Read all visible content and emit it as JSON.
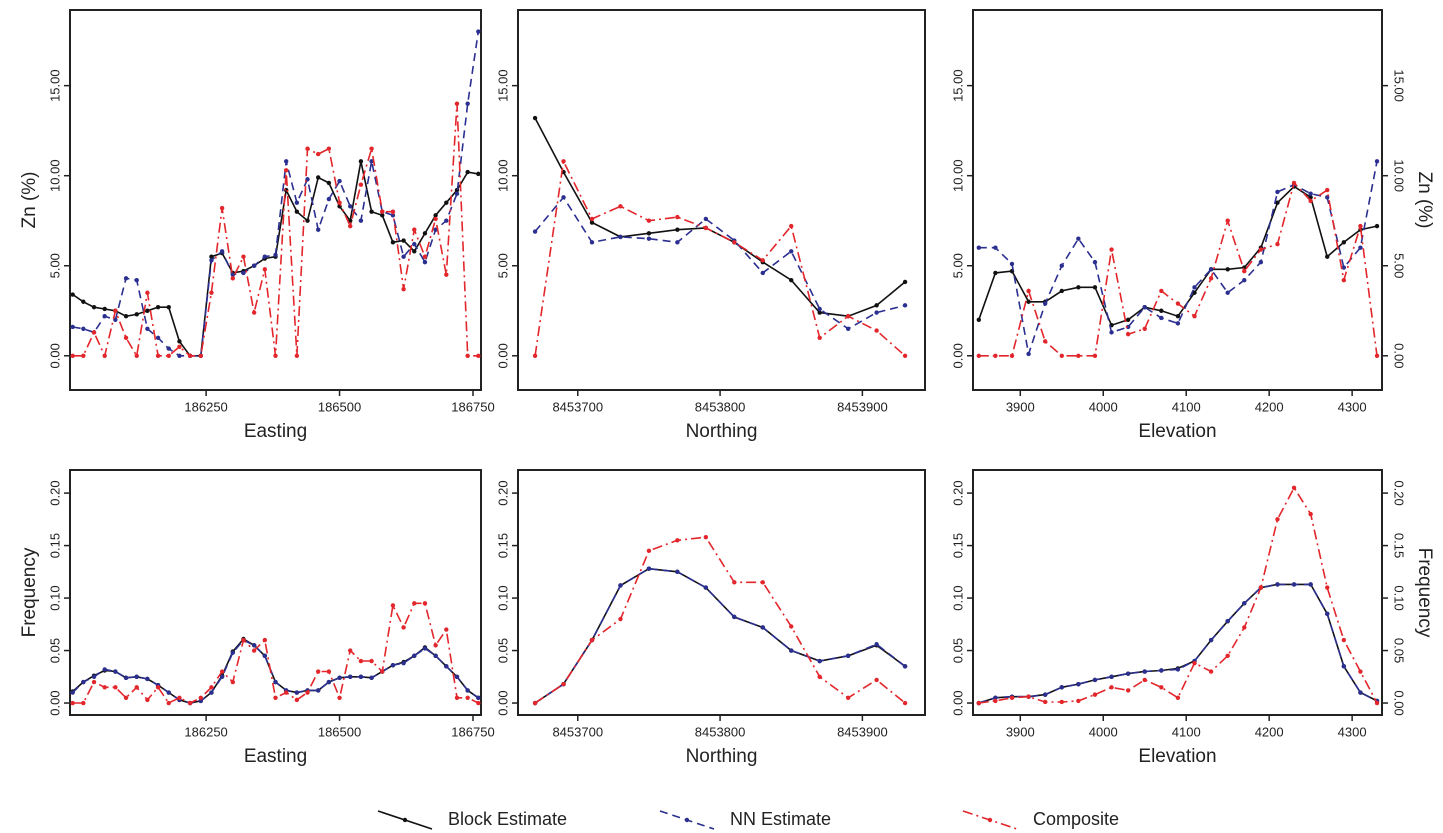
{
  "chart_data": [
    {
      "type": "line",
      "xlabel": "Easting",
      "ylabel": "Zn (%)",
      "ylabel_side": "left",
      "right_axis": false,
      "x": [
        186000,
        186020,
        186040,
        186060,
        186080,
        186100,
        186120,
        186140,
        186160,
        186180,
        186200,
        186220,
        186240,
        186260,
        186280,
        186300,
        186320,
        186340,
        186360,
        186380,
        186400,
        186420,
        186440,
        186460,
        186480,
        186500,
        186520,
        186540,
        186560,
        186580,
        186600,
        186620,
        186640,
        186660,
        186680,
        186700,
        186720,
        186740,
        186760
      ],
      "xlim": [
        185995,
        186765
      ],
      "xticks": [
        186250,
        186500,
        186750
      ],
      "ylim": [
        -1.9,
        19.2
      ],
      "yticks": [
        {
          "value": 0,
          "label": "0.00"
        },
        {
          "value": 5,
          "label": "5.00"
        },
        {
          "value": 10,
          "label": "10.00"
        },
        {
          "value": 15,
          "label": "15.00"
        }
      ],
      "series": [
        {
          "name": "Block Estimate",
          "color": "#111111",
          "style": "solid",
          "values": [
            3.4,
            3.0,
            2.7,
            2.6,
            2.5,
            2.2,
            2.3,
            2.5,
            2.7,
            2.7,
            0.8,
            0,
            0,
            5.5,
            5.7,
            4.6,
            4.7,
            5.0,
            5.4,
            5.5,
            9.2,
            8.0,
            7.5,
            9.9,
            9.6,
            8.3,
            7.5,
            10.8,
            8.0,
            7.8,
            6.3,
            6.4,
            5.8,
            6.8,
            7.8,
            8.5,
            9.2,
            10.2,
            10.1
          ]
        },
        {
          "name": "NN Estimate",
          "color": "#2b2f8f",
          "style": "dashed",
          "values": [
            1.6,
            1.5,
            1.3,
            2.2,
            2.0,
            4.3,
            4.2,
            1.5,
            1.0,
            0.4,
            0,
            0,
            0,
            5.3,
            5.8,
            4.5,
            4.6,
            5.0,
            5.5,
            5.6,
            10.8,
            8.5,
            9.8,
            7.0,
            8.7,
            9.7,
            8.3,
            7.5,
            10.8,
            8.0,
            7.8,
            5.5,
            6.2,
            5.2,
            7.0,
            7.5,
            9.0,
            14.0,
            18.0
          ]
        },
        {
          "name": "Composite",
          "color": "#e3262b",
          "style": "dashdot",
          "values": [
            0,
            0,
            1.3,
            0,
            2.5,
            1.0,
            0,
            3.5,
            0,
            0,
            0.5,
            0,
            0,
            3.5,
            8.2,
            4.3,
            5.5,
            2.4,
            4.8,
            0,
            10.3,
            0,
            11.5,
            11.2,
            11.5,
            8.5,
            7.2,
            9.5,
            11.5,
            8.0,
            8.0,
            3.7,
            7.0,
            5.5,
            7.6,
            4.5,
            14.0,
            0,
            0
          ]
        }
      ]
    },
    {
      "type": "line",
      "xlabel": "Northing",
      "right_axis": false,
      "x": [
        8453670,
        8453690,
        8453710,
        8453730,
        8453750,
        8453770,
        8453790,
        8453810,
        8453830,
        8453850,
        8453870,
        8453890,
        8453910,
        8453930
      ],
      "xlim": [
        8453658,
        8453944
      ],
      "xticks": [
        8453700,
        8453800,
        8453900
      ],
      "ylim": [
        -1.9,
        19.2
      ],
      "yticks": [
        {
          "value": 0,
          "label": "0.00"
        },
        {
          "value": 5,
          "label": "5.00"
        },
        {
          "value": 10,
          "label": "10.00"
        },
        {
          "value": 15,
          "label": "15.00"
        }
      ],
      "series": [
        {
          "name": "Block Estimate",
          "color": "#111111",
          "style": "solid",
          "values": [
            13.2,
            10.2,
            7.4,
            6.6,
            6.8,
            7.0,
            7.1,
            6.3,
            5.2,
            4.2,
            2.4,
            2.2,
            2.8,
            4.1
          ]
        },
        {
          "name": "NN Estimate",
          "color": "#2b2f8f",
          "style": "dashed",
          "values": [
            6.9,
            8.8,
            6.3,
            6.6,
            6.5,
            6.3,
            7.6,
            6.4,
            4.6,
            5.8,
            2.6,
            1.5,
            2.4,
            2.8
          ]
        },
        {
          "name": "Composite",
          "color": "#e3262b",
          "style": "dashdot",
          "values": [
            0,
            10.8,
            7.6,
            8.3,
            7.5,
            7.7,
            7.1,
            6.3,
            5.3,
            7.2,
            1.0,
            2.2,
            1.4,
            0
          ]
        }
      ]
    },
    {
      "type": "line",
      "xlabel": "Elevation",
      "ylabel": "Zn (%)",
      "ylabel_side": "right",
      "right_axis": true,
      "x": [
        3850,
        3870,
        3890,
        3910,
        3930,
        3950,
        3970,
        3990,
        4010,
        4030,
        4050,
        4070,
        4090,
        4110,
        4130,
        4150,
        4170,
        4190,
        4210,
        4230,
        4250,
        4270,
        4290,
        4310,
        4330
      ],
      "xlim": [
        3843,
        4336
      ],
      "xticks": [
        3900,
        4000,
        4100,
        4200,
        4300
      ],
      "ylim": [
        -1.9,
        19.2
      ],
      "yticks": [
        {
          "value": 0,
          "label": "0.00"
        },
        {
          "value": 5,
          "label": "5.00"
        },
        {
          "value": 10,
          "label": "10.00"
        },
        {
          "value": 15,
          "label": "15.00"
        }
      ],
      "series": [
        {
          "name": "Block Estimate",
          "color": "#111111",
          "style": "solid",
          "values": [
            2.0,
            4.6,
            4.7,
            3.0,
            3.0,
            3.6,
            3.8,
            3.8,
            1.7,
            2.0,
            2.7,
            2.5,
            2.2,
            3.5,
            4.8,
            4.8,
            4.9,
            6.0,
            8.5,
            9.4,
            8.8,
            5.5,
            6.3,
            7.0,
            7.2
          ]
        },
        {
          "name": "NN Estimate",
          "color": "#2b2f8f",
          "style": "dashed",
          "values": [
            6.0,
            6.0,
            5.1,
            0.1,
            2.9,
            5.0,
            6.5,
            5.2,
            1.3,
            1.6,
            2.7,
            2.1,
            1.8,
            3.8,
            4.8,
            3.5,
            4.2,
            5.2,
            9.1,
            9.5,
            9.0,
            8.8,
            4.9,
            6.0,
            10.8
          ]
        },
        {
          "name": "Composite",
          "color": "#e3262b",
          "style": "dashdot",
          "values": [
            0,
            0,
            0,
            3.6,
            0.8,
            0,
            0,
            0,
            5.9,
            1.2,
            1.5,
            3.6,
            2.9,
            2.2,
            4.3,
            7.5,
            4.7,
            5.9,
            6.2,
            9.6,
            8.6,
            9.2,
            4.2,
            7.2,
            0
          ]
        }
      ]
    },
    {
      "type": "line",
      "xlabel": "Easting",
      "ylabel": "Frequency",
      "ylabel_side": "left",
      "right_axis": false,
      "x": [
        186000,
        186020,
        186040,
        186060,
        186080,
        186100,
        186120,
        186140,
        186160,
        186180,
        186200,
        186220,
        186240,
        186260,
        186280,
        186300,
        186320,
        186340,
        186360,
        186380,
        186400,
        186420,
        186440,
        186460,
        186480,
        186500,
        186520,
        186540,
        186560,
        186580,
        186600,
        186620,
        186640,
        186660,
        186680,
        186700,
        186720,
        186740,
        186760
      ],
      "xlim": [
        185995,
        186765
      ],
      "xticks": [
        186250,
        186500,
        186750
      ],
      "ylim": [
        -0.0114,
        0.222
      ],
      "yticks": [
        {
          "value": 0,
          "label": "0.00"
        },
        {
          "value": 0.05,
          "label": "0.05"
        },
        {
          "value": 0.1,
          "label": "0.10"
        },
        {
          "value": 0.15,
          "label": "0.15"
        },
        {
          "value": 0.2,
          "label": "0.20"
        }
      ],
      "series": [
        {
          "name": "Block Estimate",
          "color": "#111111",
          "style": "solid",
          "values": [
            0.011,
            0.02,
            0.026,
            0.031,
            0.03,
            0.024,
            0.025,
            0.023,
            0.017,
            0.01,
            0.003,
            0,
            0.002,
            0.01,
            0.026,
            0.049,
            0.061,
            0.055,
            0.045,
            0.02,
            0.012,
            0.01,
            0.012,
            0.012,
            0.02,
            0.024,
            0.025,
            0.025,
            0.024,
            0.03,
            0.036,
            0.039,
            0.045,
            0.053,
            0.045,
            0.035,
            0.025,
            0.012,
            0.005
          ]
        },
        {
          "name": "NN Estimate",
          "color": "#2b2f8f",
          "style": "dashed",
          "values": [
            0.01,
            0.02,
            0.025,
            0.032,
            0.03,
            0.024,
            0.025,
            0.023,
            0.017,
            0.01,
            0.003,
            0,
            0.002,
            0.01,
            0.025,
            0.048,
            0.06,
            0.055,
            0.045,
            0.02,
            0.012,
            0.01,
            0.012,
            0.012,
            0.02,
            0.024,
            0.025,
            0.025,
            0.024,
            0.03,
            0.036,
            0.038,
            0.045,
            0.052,
            0.045,
            0.035,
            0.025,
            0.012,
            0.005
          ]
        },
        {
          "name": "Composite",
          "color": "#e3262b",
          "style": "dashdot",
          "values": [
            0,
            0,
            0.02,
            0.015,
            0.015,
            0.005,
            0.015,
            0.003,
            0.015,
            0,
            0.005,
            0,
            0.005,
            0.015,
            0.03,
            0.02,
            0.06,
            0.05,
            0.06,
            0.005,
            0.01,
            0.003,
            0.01,
            0.03,
            0.03,
            0.005,
            0.05,
            0.04,
            0.04,
            0.03,
            0.093,
            0.072,
            0.095,
            0.095,
            0.055,
            0.07,
            0.005,
            0.005,
            0
          ]
        }
      ]
    },
    {
      "type": "line",
      "xlabel": "Northing",
      "right_axis": false,
      "x": [
        8453670,
        8453690,
        8453710,
        8453730,
        8453750,
        8453770,
        8453790,
        8453810,
        8453830,
        8453850,
        8453870,
        8453890,
        8453910,
        8453930
      ],
      "xlim": [
        8453658,
        8453944
      ],
      "xticks": [
        8453700,
        8453800,
        8453900
      ],
      "ylim": [
        -0.0114,
        0.222
      ],
      "yticks": [
        {
          "value": 0,
          "label": "0.00"
        },
        {
          "value": 0.05,
          "label": "0.05"
        },
        {
          "value": 0.1,
          "label": "0.10"
        },
        {
          "value": 0.15,
          "label": "0.15"
        },
        {
          "value": 0.2,
          "label": "0.20"
        }
      ],
      "series": [
        {
          "name": "Block Estimate",
          "color": "#111111",
          "style": "solid",
          "values": [
            0,
            0.018,
            0.06,
            0.112,
            0.128,
            0.125,
            0.11,
            0.082,
            0.072,
            0.05,
            0.04,
            0.045,
            0.055,
            0.035
          ]
        },
        {
          "name": "NN Estimate",
          "color": "#2b2f8f",
          "style": "dashed",
          "values": [
            0,
            0.018,
            0.06,
            0.112,
            0.128,
            0.125,
            0.11,
            0.082,
            0.072,
            0.05,
            0.04,
            0.045,
            0.056,
            0.035
          ]
        },
        {
          "name": "Composite",
          "color": "#e3262b",
          "style": "dashdot",
          "values": [
            0,
            0.018,
            0.06,
            0.08,
            0.145,
            0.155,
            0.158,
            0.115,
            0.115,
            0.073,
            0.025,
            0.005,
            0.022,
            0
          ]
        }
      ]
    },
    {
      "type": "line",
      "xlabel": "Elevation",
      "ylabel": "Frequency",
      "ylabel_side": "right",
      "right_axis": true,
      "x": [
        3850,
        3870,
        3890,
        3910,
        3930,
        3950,
        3970,
        3990,
        4010,
        4030,
        4050,
        4070,
        4090,
        4110,
        4130,
        4150,
        4170,
        4190,
        4210,
        4230,
        4250,
        4270,
        4290,
        4310,
        4330
      ],
      "xlim": [
        3843,
        4336
      ],
      "xticks": [
        3900,
        4000,
        4100,
        4200,
        4300
      ],
      "ylim": [
        -0.0114,
        0.222
      ],
      "yticks": [
        {
          "value": 0,
          "label": "0.00"
        },
        {
          "value": 0.05,
          "label": "0.05"
        },
        {
          "value": 0.1,
          "label": "0.10"
        },
        {
          "value": 0.15,
          "label": "0.15"
        },
        {
          "value": 0.2,
          "label": "0.20"
        }
      ],
      "series": [
        {
          "name": "Block Estimate",
          "color": "#111111",
          "style": "solid",
          "values": [
            0,
            0.005,
            0.006,
            0.006,
            0.008,
            0.015,
            0.018,
            0.022,
            0.025,
            0.028,
            0.03,
            0.031,
            0.033,
            0.04,
            0.06,
            0.078,
            0.095,
            0.11,
            0.113,
            0.113,
            0.113,
            0.085,
            0.035,
            0.01,
            0.002
          ]
        },
        {
          "name": "NN Estimate",
          "color": "#2b2f8f",
          "style": "dashed",
          "values": [
            0,
            0.005,
            0.006,
            0.006,
            0.008,
            0.015,
            0.018,
            0.022,
            0.025,
            0.028,
            0.03,
            0.031,
            0.032,
            0.04,
            0.06,
            0.078,
            0.095,
            0.11,
            0.113,
            0.113,
            0.113,
            0.085,
            0.035,
            0.01,
            0.002
          ]
        },
        {
          "name": "Composite",
          "color": "#e3262b",
          "style": "dashdot",
          "values": [
            0,
            0.002,
            0.005,
            0.006,
            0.001,
            0.001,
            0.002,
            0.008,
            0.015,
            0.012,
            0.022,
            0.015,
            0.005,
            0.038,
            0.03,
            0.045,
            0.072,
            0.11,
            0.175,
            0.205,
            0.18,
            0.11,
            0.06,
            0.03,
            0
          ]
        }
      ]
    }
  ]
}
